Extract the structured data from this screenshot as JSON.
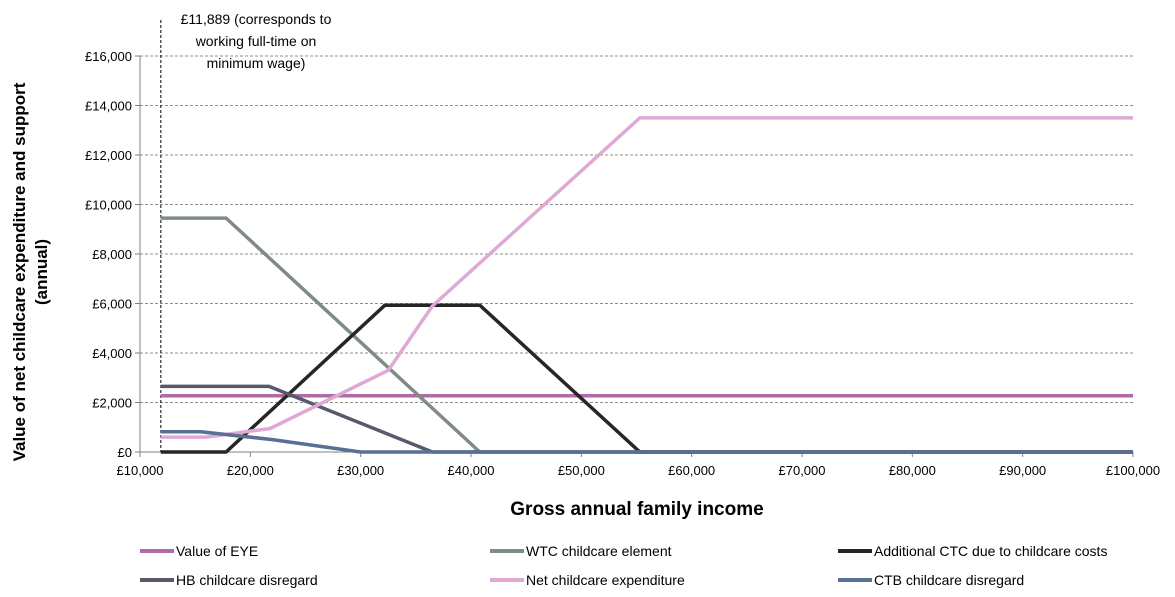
{
  "chart_data": {
    "type": "line",
    "xlabel": "Gross annual family income",
    "ylabel_line1": "Value of net childcare expenditure and support",
    "ylabel_line2": "(annual)",
    "xlim": [
      10000,
      100000
    ],
    "ylim": [
      0,
      16000
    ],
    "x_ticks": [
      10000,
      20000,
      30000,
      40000,
      50000,
      60000,
      70000,
      80000,
      90000,
      100000
    ],
    "x_tick_labels": [
      "£10,000",
      "£20,000",
      "£30,000",
      "£40,000",
      "£50,000",
      "£60,000",
      "£70,000",
      "£80,000",
      "£90,000",
      "£100,000"
    ],
    "y_ticks": [
      0,
      2000,
      4000,
      6000,
      8000,
      10000,
      12000,
      14000,
      16000
    ],
    "y_tick_labels": [
      "£0",
      "£2,000",
      "£4,000",
      "£6,000",
      "£8,000",
      "£10,000",
      "£12,000",
      "£14,000",
      "£16,000"
    ],
    "grid": "horizontal dashed",
    "legend_position": "bottom",
    "reference_line": {
      "x": 11889,
      "label_lines": [
        "£11,889 (corresponds to",
        "working full-time on",
        "minimum wage)"
      ]
    },
    "series": [
      {
        "name": "Value of EYE",
        "color": "#b06aa6",
        "points": [
          [
            11889,
            2270
          ],
          [
            100000,
            2270
          ]
        ]
      },
      {
        "name": "WTC childcare element",
        "color": "#7f8c84",
        "points": [
          [
            11889,
            9450
          ],
          [
            17800,
            9450
          ],
          [
            40800,
            0
          ],
          [
            100000,
            0
          ]
        ]
      },
      {
        "name": "Additional CTC due to childcare costs",
        "color": "#262626",
        "points": [
          [
            11889,
            0
          ],
          [
            17800,
            0
          ],
          [
            32200,
            5930
          ],
          [
            40800,
            5930
          ],
          [
            55300,
            0
          ],
          [
            100000,
            0
          ]
        ]
      },
      {
        "name": "HB childcare disregard",
        "color": "#565a6c",
        "points": [
          [
            11889,
            2650
          ],
          [
            21700,
            2650
          ],
          [
            36500,
            0
          ],
          [
            100000,
            0
          ]
        ]
      },
      {
        "name": "Net childcare expenditure",
        "color": "#e0a9d3",
        "points": [
          [
            11889,
            600
          ],
          [
            16000,
            600
          ],
          [
            21800,
            950
          ],
          [
            32500,
            3300
          ],
          [
            36500,
            5900
          ],
          [
            55300,
            13500
          ],
          [
            100000,
            13500
          ]
        ]
      },
      {
        "name": "CTB childcare disregard",
        "color": "#5a6f96",
        "points": [
          [
            11889,
            820
          ],
          [
            15500,
            820
          ],
          [
            22000,
            500
          ],
          [
            30000,
            0
          ],
          [
            100000,
            0
          ]
        ]
      }
    ]
  }
}
